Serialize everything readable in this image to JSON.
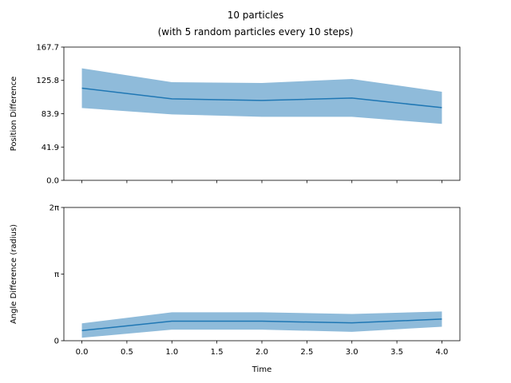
{
  "figure": {
    "title_line1": "10 particles",
    "title_line2": "(with 5 random particles every 10 steps)"
  },
  "chart_data": [
    {
      "type": "area",
      "ylabel": "Position Difference",
      "xlabel": "",
      "xlim": [
        -0.2,
        4.2
      ],
      "ylim": [
        0,
        167.7
      ],
      "yticks": [
        0.0,
        41.9,
        83.9,
        125.8,
        167.7
      ],
      "ytick_labels": [
        "0.0",
        "41.9",
        "83.9",
        "125.8",
        "167.7"
      ],
      "xticks": [
        0.0,
        0.5,
        1.0,
        1.5,
        2.0,
        2.5,
        3.0,
        3.5,
        4.0
      ],
      "show_xtick_labels": false,
      "x": [
        0,
        1,
        2,
        3,
        4
      ],
      "mean": [
        116.0,
        102.5,
        100.5,
        103.5,
        91.5
      ],
      "upper": [
        141.0,
        123.5,
        122.5,
        127.5,
        111.5
      ],
      "lower": [
        91.0,
        83.0,
        80.0,
        80.0,
        71.0
      ],
      "line_color": "#1f77b4",
      "band_color": "#8fbbda",
      "grid": false
    },
    {
      "type": "area",
      "ylabel": "Angle Difference (radius)",
      "xlabel": "Time",
      "xlim": [
        -0.2,
        4.2
      ],
      "ylim": [
        0,
        6.2832
      ],
      "yticks": [
        0,
        3.1416,
        6.2832
      ],
      "ytick_labels": [
        "0",
        "π",
        "2π"
      ],
      "xticks": [
        0.0,
        0.5,
        1.0,
        1.5,
        2.0,
        2.5,
        3.0,
        3.5,
        4.0
      ],
      "xtick_labels": [
        "0.0",
        "0.5",
        "1.0",
        "1.5",
        "2.0",
        "2.5",
        "3.0",
        "3.5",
        "4.0"
      ],
      "show_xtick_labels": true,
      "x": [
        0,
        1,
        2,
        3,
        4
      ],
      "mean": [
        0.48,
        0.92,
        0.92,
        0.84,
        1.02
      ],
      "upper": [
        0.82,
        1.34,
        1.34,
        1.26,
        1.38
      ],
      "lower": [
        0.14,
        0.52,
        0.52,
        0.42,
        0.66
      ],
      "line_color": "#1f77b4",
      "band_color": "#8fbbda",
      "grid": false
    }
  ]
}
